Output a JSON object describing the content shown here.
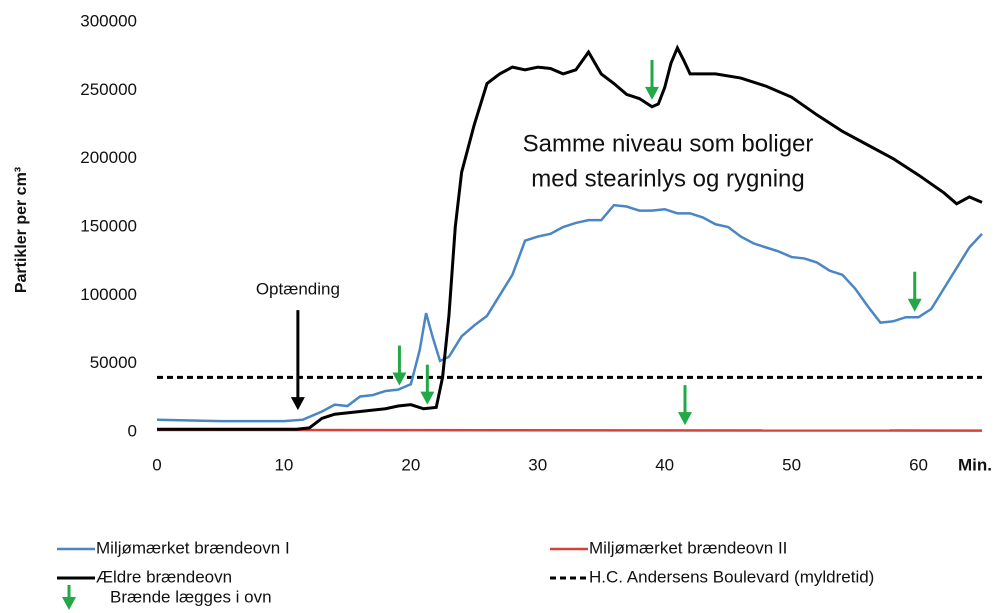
{
  "chart_data": {
    "type": "line",
    "y_label": "Partikler per cm³",
    "x_label": "Min.",
    "xlim": [
      0,
      65
    ],
    "ylim": [
      0,
      300000
    ],
    "xticks": [
      0,
      10,
      20,
      30,
      40,
      50,
      60
    ],
    "yticks": [
      0,
      50000,
      100000,
      150000,
      200000,
      250000,
      300000
    ],
    "grid": false,
    "series": [
      {
        "name": "Miljømærket brændeovn I",
        "color": "#4a86c5",
        "dash": false,
        "x": [
          0,
          5,
          10,
          11.5,
          13,
          14,
          15,
          16,
          17,
          18,
          19,
          20,
          20.7,
          21.2,
          21.7,
          22.3,
          23,
          24,
          25,
          26,
          27,
          28,
          29,
          30,
          31,
          32,
          33,
          34,
          35,
          36,
          37,
          38,
          39,
          40,
          41,
          42,
          43,
          44,
          45,
          46,
          47,
          48,
          49,
          50,
          51,
          52,
          53,
          54,
          55,
          56,
          57,
          58,
          59,
          60,
          61,
          62,
          63,
          64,
          65
        ],
        "values": [
          9000,
          8000,
          8000,
          9000,
          15000,
          20000,
          19000,
          26000,
          27000,
          30000,
          31000,
          35000,
          60000,
          87000,
          70000,
          52000,
          55000,
          70000,
          78000,
          85000,
          100000,
          115000,
          140000,
          143000,
          145000,
          150000,
          153000,
          155000,
          155000,
          166000,
          165000,
          162000,
          162000,
          163000,
          160000,
          160000,
          157000,
          152000,
          150000,
          143000,
          138000,
          135000,
          132000,
          128000,
          127000,
          124000,
          118000,
          115000,
          105000,
          92000,
          80000,
          81000,
          84000,
          84000,
          90000,
          105000,
          120000,
          135000,
          145000
        ]
      },
      {
        "name": "Miljømærket brændeovn II",
        "color": "#d9403a",
        "dash": false,
        "x": [
          0,
          65
        ],
        "values": [
          1500,
          1000
        ]
      },
      {
        "name": "Ældre brændeovn",
        "color": "#000000",
        "dash": false,
        "x": [
          0,
          11,
          12,
          13,
          14,
          16,
          18,
          19,
          20,
          21,
          22,
          22.5,
          23,
          23.5,
          24,
          25,
          26,
          27,
          28,
          29,
          30,
          31,
          32,
          33,
          34,
          35,
          36,
          37,
          38,
          39,
          39.5,
          40,
          40.5,
          41,
          41.5,
          42,
          44,
          46,
          48,
          50,
          52,
          54,
          56,
          58,
          60,
          62,
          63,
          64,
          65
        ],
        "values": [
          2000,
          2000,
          3000,
          10000,
          13000,
          15000,
          17000,
          19000,
          20000,
          17000,
          18000,
          40000,
          85000,
          150000,
          190000,
          225000,
          255000,
          262000,
          267000,
          265000,
          267000,
          266000,
          262000,
          265000,
          278000,
          262000,
          255000,
          247000,
          244000,
          238000,
          240000,
          252000,
          270000,
          281000,
          272000,
          262000,
          262000,
          259000,
          253000,
          245000,
          232000,
          220000,
          210000,
          200000,
          188000,
          175000,
          167000,
          172000,
          168000
        ]
      },
      {
        "name": "H.C. Andersens Boulevard (myldretid)",
        "color": "#000000",
        "dash": true,
        "x": [
          0,
          65
        ],
        "values": [
          40000,
          40000
        ]
      }
    ],
    "arrows_label": "Brænde lægges i ovn",
    "arrow_color": "#22a846",
    "arrows": {
      "x": [
        19.1,
        21.3,
        41.6,
        39,
        59.7
      ],
      "y": [
        34000,
        20000,
        5000,
        243000,
        88000
      ]
    },
    "ignition": {
      "text": "Optænding",
      "x": 11.1,
      "y": 16000
    },
    "note": {
      "lines": [
        "Samme niveau som boliger",
        "med stearinlys og rygning"
      ],
      "color": "#e0282e"
    }
  }
}
